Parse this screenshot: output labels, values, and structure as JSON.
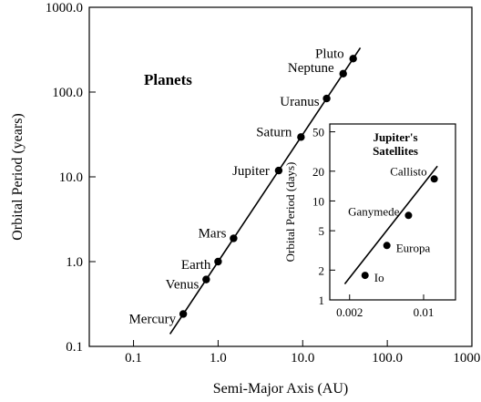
{
  "chart_data": [
    {
      "type": "scatter",
      "title": "Planets",
      "xlabel": "Semi-Major Axis (AU)",
      "ylabel": "Orbital Period (years)",
      "xscale": "log",
      "yscale": "log",
      "xlim": [
        0.03,
        1000
      ],
      "ylim": [
        0.1,
        1000
      ],
      "xticks": [
        0.1,
        1,
        10,
        100,
        1000
      ],
      "xtick_labels": [
        "0.1",
        "1.0",
        "10.0",
        "100.0",
        "1000.0"
      ],
      "yticks": [
        0.1,
        1,
        10,
        100,
        1000
      ],
      "ytick_labels": [
        "0.1",
        "1.0",
        "10.0",
        "100.0",
        "1000.0"
      ],
      "grid": false,
      "fit_line": {
        "x": [
          0.27,
          48
        ],
        "y": [
          0.14,
          333
        ]
      },
      "points": [
        {
          "label": "Mercury",
          "x": 0.387,
          "y": 0.241
        },
        {
          "label": "Venus",
          "x": 0.723,
          "y": 0.615
        },
        {
          "label": "Earth",
          "x": 1.0,
          "y": 1.0
        },
        {
          "label": "Mars",
          "x": 1.524,
          "y": 1.881
        },
        {
          "label": "Jupiter",
          "x": 5.2,
          "y": 11.86
        },
        {
          "label": "Saturn",
          "x": 9.54,
          "y": 29.46
        },
        {
          "label": "Uranus",
          "x": 19.2,
          "y": 84.0
        },
        {
          "label": "Neptune",
          "x": 30.1,
          "y": 164.8
        },
        {
          "label": "Pluto",
          "x": 39.5,
          "y": 248.0
        }
      ]
    },
    {
      "type": "scatter",
      "title": "Jupiter's Satellites",
      "title_lines": [
        "Jupiter's",
        "Satellites"
      ],
      "xlabel": "",
      "ylabel": "Orbital Period (days)",
      "xscale": "log",
      "yscale": "log",
      "xlim": [
        0.0013,
        0.02
      ],
      "ylim": [
        1,
        60
      ],
      "xticks": [
        0.002,
        0.01
      ],
      "xtick_labels": [
        "0.002",
        "0.01"
      ],
      "yticks": [
        1,
        2,
        5,
        10,
        20,
        50
      ],
      "ytick_labels": [
        "1",
        "2",
        "5",
        "10",
        "20",
        "50"
      ],
      "grid": false,
      "fit_line": {
        "x": [
          0.0018,
          0.0135
        ],
        "y": [
          1.45,
          22.5
        ]
      },
      "points": [
        {
          "label": "Io",
          "x": 0.0028,
          "y": 1.77
        },
        {
          "label": "Europa",
          "x": 0.0045,
          "y": 3.55
        },
        {
          "label": "Ganymede",
          "x": 0.0072,
          "y": 7.15
        },
        {
          "label": "Callisto",
          "x": 0.0126,
          "y": 16.7
        }
      ]
    }
  ]
}
